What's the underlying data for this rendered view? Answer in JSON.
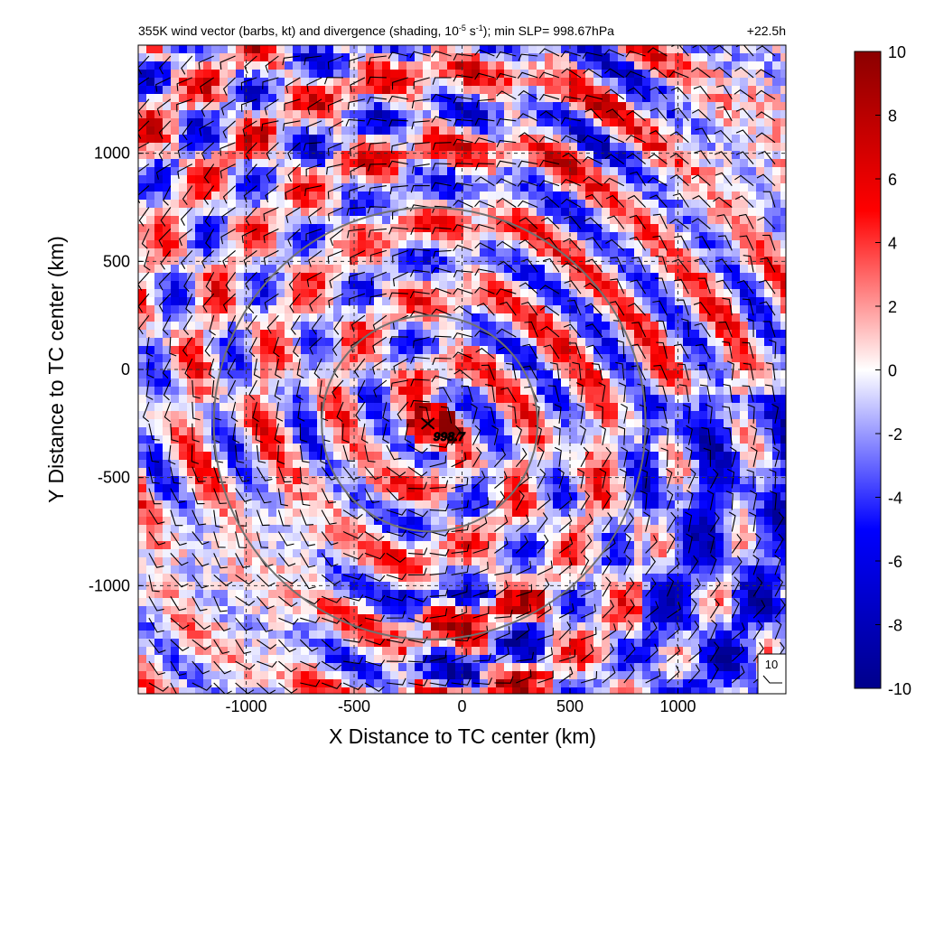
{
  "title": "355K wind vector (barbs, kt) and divergence (shading, 10",
  "title_sup": "-5",
  "title_unit_sup": "-1",
  "title_unit": " s",
  "title_rest": "); min SLP= 998.67hPa",
  "forecast_time": "+22.5h",
  "center_label": "998.7",
  "reference_barb_label": "10",
  "chart_data": {
    "type": "heatmap",
    "xlabel": "X Distance to TC center (km)",
    "ylabel": "Y Distance to TC center (km)",
    "xlim": [
      -1500,
      1500
    ],
    "ylim": [
      -1500,
      1500
    ],
    "xticks": [
      -1000,
      -500,
      0,
      500,
      1000
    ],
    "yticks": [
      1000,
      500,
      0,
      -500,
      -1000
    ],
    "grid": true,
    "center": [
      -150,
      -250
    ],
    "rings_km": [
      500,
      1000
    ],
    "colorbar": {
      "min": -10,
      "max": 10,
      "ticks": [
        10,
        8,
        6,
        4,
        2,
        0,
        -2,
        -4,
        -6,
        -8,
        -10
      ],
      "colors": [
        "#00008b",
        "#0000ff",
        "#ffffff",
        "#ff0000",
        "#8b0000"
      ]
    }
  }
}
